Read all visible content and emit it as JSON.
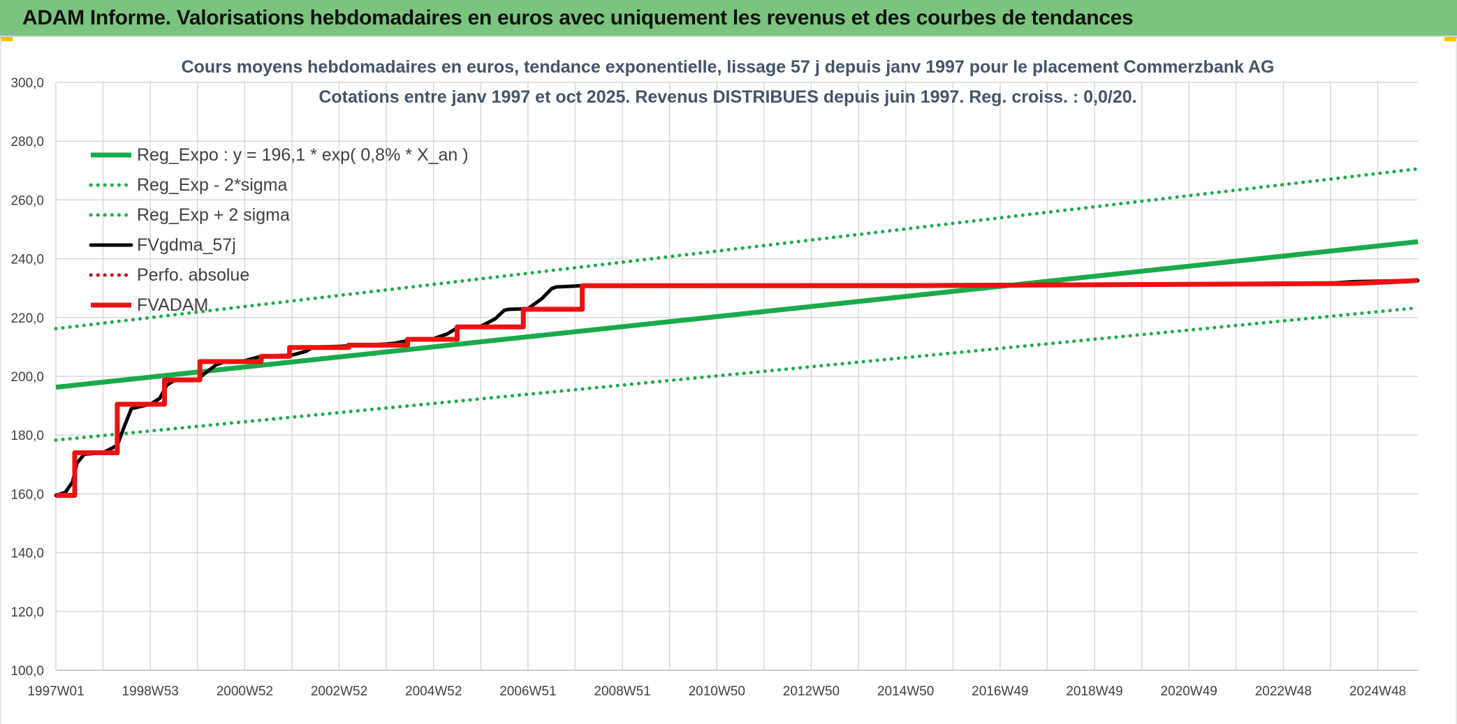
{
  "banner": {
    "title": "ADAM Informe. Valorisations hebdomadaires en euros avec uniquement les revenus et des courbes de tendances"
  },
  "colors": {
    "banner": "#7bc47f",
    "reg_expo": "#1aaa4b",
    "fvgdma": "#000000",
    "fvadam": "#ee1111",
    "perfo": "#cc0000",
    "grid": "#d9d9d9",
    "title_text": "#44546a"
  },
  "chart_data": {
    "type": "line",
    "title": "Cours moyens hebdomadaires en euros, tendance exponentielle, lissage 57 j depuis janv 1997 pour le placement Commerzbank AG",
    "subtitle": "Cotations entre janv 1997 et oct 2025. Revenus DISTRIBUES depuis juin 1997. Reg. croiss. : 0,0/20.",
    "xlabel": "",
    "ylabel": "",
    "x_range": [
      1997.0,
      2025.85
    ],
    "ylim": [
      100,
      300
    ],
    "y_ticks": [
      "100,0",
      "120,0",
      "140,0",
      "160,0",
      "180,0",
      "200,0",
      "220,0",
      "240,0",
      "260,0",
      "280,0",
      "300,0"
    ],
    "x_ticks": [
      {
        "label": "1997W01",
        "x": 1997.0
      },
      {
        "label": "1998W53",
        "x": 1999.0
      },
      {
        "label": "2000W52",
        "x": 2001.0
      },
      {
        "label": "2002W52",
        "x": 2003.0
      },
      {
        "label": "2004W52",
        "x": 2005.0
      },
      {
        "label": "2006W51",
        "x": 2007.0
      },
      {
        "label": "2008W51",
        "x": 2009.0
      },
      {
        "label": "2010W50",
        "x": 2011.0
      },
      {
        "label": "2012W50",
        "x": 2013.0
      },
      {
        "label": "2014W50",
        "x": 2015.0
      },
      {
        "label": "2016W49",
        "x": 2017.0
      },
      {
        "label": "2018W49",
        "x": 2019.0
      },
      {
        "label": "2020W49",
        "x": 2021.0
      },
      {
        "label": "2022W48",
        "x": 2023.0
      },
      {
        "label": "2024W48",
        "x": 2025.0
      }
    ],
    "grid": true,
    "legend_position": "top-left",
    "series": [
      {
        "name": "Reg_Expo : y = 196,1 * exp( 0,8% *  X_an )",
        "style": "solid-thick",
        "color": "#1aaa4b",
        "x": [
          1997.0,
          2025.85
        ],
        "y": [
          196.3,
          245.8
        ]
      },
      {
        "name": "Reg_Exp - 2*sigma",
        "style": "dotted",
        "color": "#1aaa4b",
        "x": [
          1997.0,
          2025.85
        ],
        "y": [
          178.3,
          223.3
        ]
      },
      {
        "name": "Reg_Exp + 2 sigma",
        "style": "dotted",
        "color": "#1aaa4b",
        "x": [
          1997.0,
          2025.85
        ],
        "y": [
          216.2,
          270.6
        ]
      },
      {
        "name": "FVgdma_57j",
        "style": "solid",
        "color": "#000000",
        "x": [
          1997.0,
          1997.2,
          1997.35,
          1997.45,
          1997.6,
          1998.0,
          1998.3,
          1998.45,
          1998.6,
          1999.0,
          1999.2,
          1999.35,
          1999.5,
          2000.0,
          2000.2,
          2000.4,
          2000.6,
          2001.0,
          2001.2,
          2001.4,
          2001.6,
          2002.0,
          2002.3,
          2002.4,
          2002.6,
          2003.0,
          2004.0,
          2004.2,
          2004.4,
          2004.5,
          2004.6,
          2005.0,
          2005.3,
          2005.5,
          2005.6,
          2006.0,
          2006.3,
          2006.5,
          2006.6,
          2007.0,
          2007.3,
          2007.5,
          2007.6,
          2008.0,
          2008.3,
          2008.5,
          2008.6,
          2009.0,
          2015.0,
          2020.0,
          2024.0,
          2024.5,
          2025.85
        ],
        "y": [
          159.5,
          160.5,
          164.0,
          170.5,
          173.5,
          174.0,
          176.5,
          183.0,
          189.0,
          190.5,
          192.5,
          197.0,
          198.5,
          199.0,
          201.5,
          204.0,
          205.0,
          205.3,
          206.2,
          207.0,
          207.0,
          207.2,
          208.5,
          209.5,
          210.0,
          210.2,
          211.0,
          211.3,
          212.0,
          212.5,
          212.6,
          212.8,
          214.5,
          216.5,
          216.8,
          217.0,
          219.5,
          222.5,
          222.8,
          223.0,
          226.5,
          229.8,
          230.4,
          230.7,
          231.0,
          231.0,
          231.0,
          231.0,
          231.1,
          231.4,
          231.7,
          232.2,
          232.6
        ]
      },
      {
        "name": "Perfo. absolue",
        "style": "dotted",
        "color": "#cc0000",
        "x": [],
        "y": []
      },
      {
        "name": "FVADAM",
        "style": "solid-thick",
        "color": "#ee1111",
        "x": [
          1997.0,
          1997.4,
          1997.4,
          1998.3,
          1998.3,
          1999.3,
          1999.3,
          2000.05,
          2000.05,
          2000.5,
          2000.5,
          2001.35,
          2001.35,
          2001.95,
          2001.95,
          2002.5,
          2002.5,
          2003.2,
          2003.2,
          2004.0,
          2004.0,
          2004.45,
          2004.45,
          2005.5,
          2005.5,
          2006.3,
          2006.3,
          2006.9,
          2006.9,
          2007.4,
          2007.4,
          2008.15,
          2008.15,
          2015.0,
          2024.5,
          2025.85
        ],
        "y": [
          159.5,
          159.5,
          174.0,
          174.0,
          190.5,
          190.5,
          198.8,
          198.8,
          205.0,
          205.0,
          205.0,
          205.0,
          206.8,
          206.8,
          209.8,
          209.8,
          209.8,
          209.8,
          210.6,
          210.6,
          210.6,
          210.6,
          212.6,
          212.6,
          216.8,
          216.8,
          216.8,
          216.8,
          222.8,
          222.8,
          222.8,
          222.8,
          230.8,
          230.8,
          231.6,
          232.6
        ]
      }
    ]
  }
}
